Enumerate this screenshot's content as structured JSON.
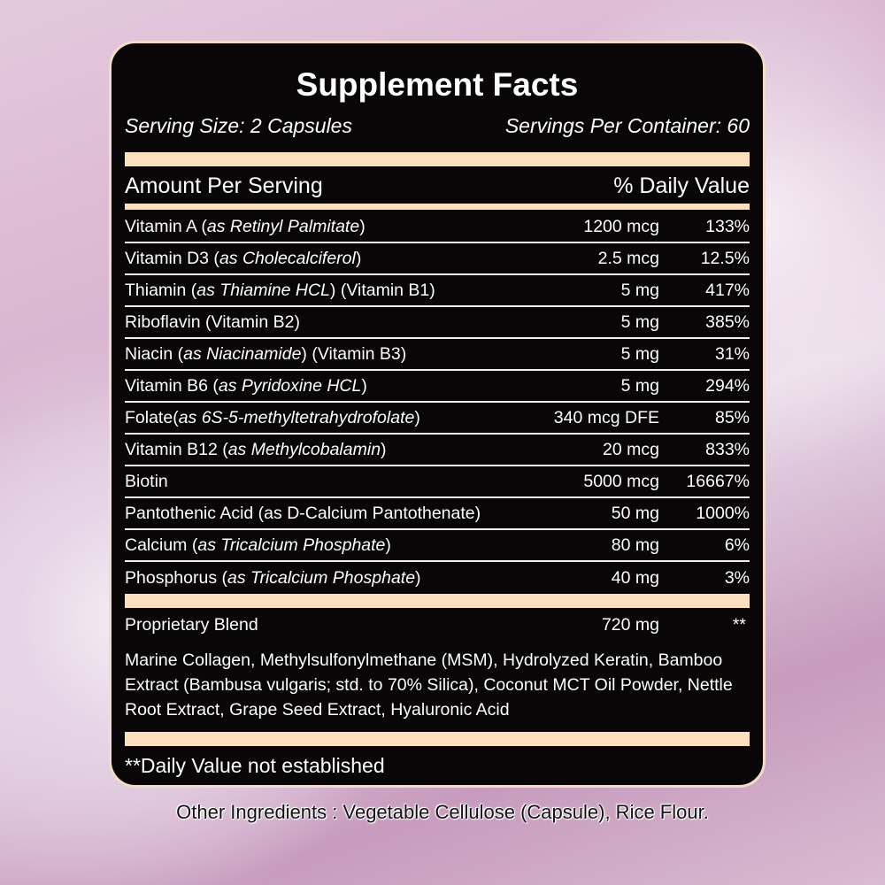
{
  "title": "Supplement Facts",
  "serving_size": "Serving Size: 2 Capsules",
  "servings_per_container": "Servings Per Container: 60",
  "header": {
    "amount": "Amount Per Serving",
    "dv": "% Daily Value"
  },
  "rows": [
    {
      "pre": "Vitamin A (",
      "it": "as Retinyl Palmitate",
      "post": ")",
      "amount": "1200 mcg",
      "dv": "133%"
    },
    {
      "pre": "Vitamin D3 (",
      "it": "as Cholecalciferol",
      "post": ")",
      "amount": "2.5 mcg",
      "dv": "12.5%"
    },
    {
      "pre": "Thiamin (",
      "it": "as Thiamine HCL",
      "post": ") (Vitamin B1)",
      "amount": "5 mg",
      "dv": "417%"
    },
    {
      "pre": "Riboflavin (Vitamin B2)",
      "it": "",
      "post": "",
      "amount": "5 mg",
      "dv": "385%"
    },
    {
      "pre": "Niacin (",
      "it": "as Niacinamide",
      "post": ") (Vitamin B3)",
      "amount": "5 mg",
      "dv": "31%"
    },
    {
      "pre": "Vitamin B6 (",
      "it": "as Pyridoxine HCL",
      "post": ")",
      "amount": "5 mg",
      "dv": "294%"
    },
    {
      "pre": "Folate(",
      "it": "as 6S-5-methyltetrahydrofolate",
      "post": ")",
      "amount": "340 mcg DFE",
      "dv": "85%"
    },
    {
      "pre": "Vitamin B12 (",
      "it": "as Methylcobalamin",
      "post": ")",
      "amount": "20 mcg",
      "dv": "833%"
    },
    {
      "pre": "Biotin",
      "it": "",
      "post": "",
      "amount": "5000 mcg",
      "dv": "16667%"
    },
    {
      "pre": "Pantothenic Acid (as D-Calcium Pantothenate)",
      "it": "",
      "post": "",
      "amount": "50 mg",
      "dv": "1000%"
    },
    {
      "pre": "Calcium (",
      "it": "as Tricalcium Phosphate",
      "post": ")",
      "amount": "80 mg",
      "dv": "6%"
    },
    {
      "pre": "Phosphorus (",
      "it": "as Tricalcium Phosphate",
      "post": ")",
      "amount": "40 mg",
      "dv": "3%"
    }
  ],
  "proprietary": {
    "name": "Proprietary Blend",
    "amount": "720 mg",
    "dv": "**",
    "ingredients": "Marine Collagen, Methylsulfonylmethane (MSM), Hydrolyzed Keratin, Bamboo Extract (Bambusa vulgaris; std. to 70% Silica), Coconut MCT Oil Powder, Nettle Root Extract, Grape Seed Extract, Hyaluronic Acid"
  },
  "footnote": "**Daily Value not established",
  "other_ingredients": "Other  Ingredients :  Vegetable Cellulose (Capsule), Rice Flour.",
  "colors": {
    "panel": "#080606",
    "accent_bar": "#fbe0bf",
    "background": "#d7b3cf"
  }
}
